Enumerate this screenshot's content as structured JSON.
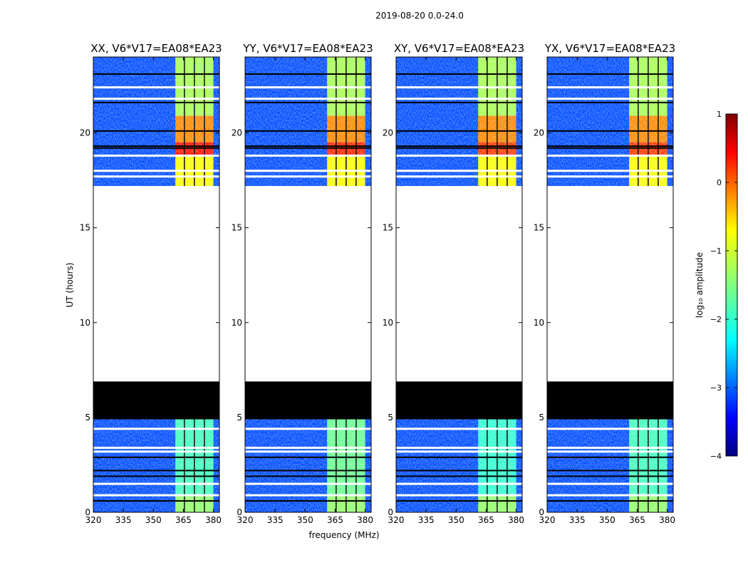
{
  "figure": {
    "title": "2019-08-20 0.0-24.0",
    "xlabel": "frequency (MHz)",
    "ylabel": "UT (hours)"
  },
  "chart_data": {
    "type": "heatmap",
    "title": "2019-08-20 0.0-24.0",
    "xlabel": "frequency (MHz)",
    "ylabel": "UT (hours)",
    "xlim": [
      320,
      383
    ],
    "ylim": [
      0,
      24
    ],
    "xticks": [
      320,
      335,
      350,
      365,
      380
    ],
    "yticks": [
      0,
      5,
      10,
      15,
      20
    ],
    "panels": [
      {
        "name": "XX",
        "title": "XX, V6*V17=EA08*EA23",
        "upper_band_peak": 0.3,
        "lower_band_peak": -1.8
      },
      {
        "name": "YY",
        "title": "YY, V6*V17=EA08*EA23",
        "upper_band_peak": 0.2,
        "lower_band_peak": -1.6
      },
      {
        "name": "XY",
        "title": "XY, V6*V17=EA08*EA23",
        "upper_band_peak": 0.1,
        "lower_band_peak": -1.9
      },
      {
        "name": "YX",
        "title": "YX, V6*V17=EA08*EA23",
        "upper_band_peak": 0.1,
        "lower_band_peak": -1.8
      }
    ],
    "colorbar": {
      "label": "log₁₀ amplitude",
      "min": -4,
      "max": 1,
      "ticks": [
        1,
        0,
        -1,
        -2,
        -3,
        -4
      ],
      "tick_labels": [
        "1",
        "0",
        "−1",
        "−2",
        "−3",
        "−4"
      ],
      "colormap": "jet",
      "colormap_stops": [
        "#00007f",
        "#0000ff",
        "#007fff",
        "#00ffff",
        "#7fff7f",
        "#ffff00",
        "#ff7f00",
        "#ff0000",
        "#7f0000"
      ]
    },
    "data_regions": [
      {
        "from": 0.0,
        "to": 4.9,
        "kind": "data",
        "level": -3.0
      },
      {
        "from": 4.9,
        "to": 6.9,
        "kind": "flagged_black"
      },
      {
        "from": 6.9,
        "to": 17.2,
        "kind": "no_data"
      },
      {
        "from": 17.2,
        "to": 24.0,
        "kind": "data",
        "level": -3.0
      }
    ],
    "rfi_band": {
      "from": 361,
      "to": 380,
      "channel_gaps": [
        365.5,
        370.5,
        375.5
      ]
    },
    "blank_rows": [
      0.9,
      1.5,
      3.2,
      3.4,
      4.4,
      17.7,
      18.0,
      18.8,
      21.8,
      22.4
    ],
    "black_rows": [
      0.6,
      1.9,
      2.2,
      2.9,
      6.6,
      19.2,
      19.3,
      20.1,
      21.6,
      23.1
    ],
    "rfi_profile": [
      {
        "from": 0.0,
        "to": 0.95,
        "level": -1.4
      },
      {
        "from": 0.95,
        "to": 4.9,
        "level": -2.0
      },
      {
        "from": 17.2,
        "to": 18.8,
        "level": -0.9
      },
      {
        "from": 18.8,
        "to": 19.5,
        "level": 0.2
      },
      {
        "from": 19.5,
        "to": 20.9,
        "level": -0.3
      },
      {
        "from": 20.9,
        "to": 24.0,
        "level": -1.3
      }
    ]
  }
}
